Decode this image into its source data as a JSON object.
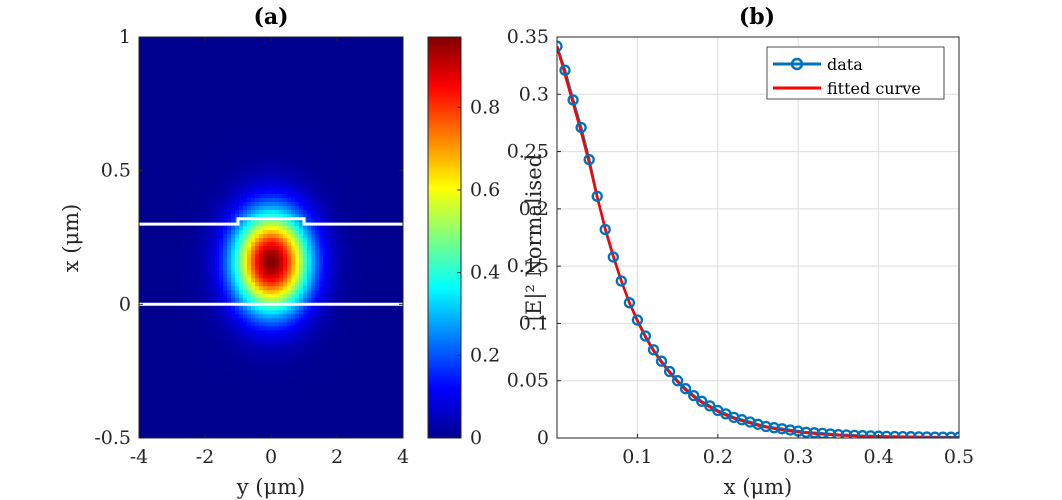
{
  "chart_data": [
    {
      "panel_title": "(a)",
      "type": "heatmap",
      "xlabel": "y (μm)",
      "ylabel": "x (μm)",
      "xlim": [
        -4,
        4
      ],
      "ylim": [
        -0.5,
        1
      ],
      "xticks": [
        -4,
        -2,
        0,
        2,
        4
      ],
      "xtick_labels": [
        "-4",
        "-2",
        "0",
        "2",
        "4"
      ],
      "yticks": [
        -0.5,
        0,
        0.5,
        1
      ],
      "ytick_labels": [
        "-0.5",
        "0",
        "0.5",
        "1"
      ],
      "field_peak": {
        "y": 0,
        "x": 0.16,
        "value": 0.97
      },
      "field_width": {
        "sigma_y": 0.8,
        "sigma_x": 0.13
      },
      "colormap": "jet",
      "colorbar": {
        "range": [
          0,
          0.97
        ],
        "ticks": [
          0,
          0.2,
          0.4,
          0.6,
          0.8
        ],
        "tick_labels": [
          "0",
          "0.2",
          "0.4",
          "0.6",
          "0.8"
        ]
      },
      "waveguide_outline": [
        {
          "name": "bottom-boundary",
          "points": [
            [
              -4,
              0
            ],
            [
              4,
              0
            ]
          ]
        },
        {
          "name": "top-boundary",
          "points": [
            [
              -4,
              0.3
            ],
            [
              -1,
              0.3
            ],
            [
              -1,
              0.32
            ],
            [
              1,
              0.32
            ],
            [
              1,
              0.3
            ],
            [
              4,
              0.3
            ]
          ]
        }
      ],
      "outline_color": "#ffffff"
    },
    {
      "panel_title": "(b)",
      "type": "line",
      "xlabel": "x (μm)",
      "ylabel": "|E|² Normalised",
      "xlim": [
        0,
        0.5
      ],
      "ylim": [
        0,
        0.35
      ],
      "xticks": [
        0.1,
        0.2,
        0.3,
        0.4,
        0.5
      ],
      "xtick_labels": [
        "0.1",
        "0.2",
        "0.3",
        "0.4",
        "0.5"
      ],
      "yticks": [
        0,
        0.05,
        0.1,
        0.15,
        0.2,
        0.25,
        0.3,
        0.35
      ],
      "ytick_labels": [
        "0",
        "0.05",
        "0.1",
        "0.15",
        "0.2",
        "0.25",
        "0.3",
        "0.35"
      ],
      "grid": true,
      "legend_position": "top-right",
      "series": [
        {
          "name": "data",
          "style": "line-with-circle-markers",
          "color": "#0072bd",
          "x": [
            0.0,
            0.01,
            0.02,
            0.03,
            0.04,
            0.05,
            0.06,
            0.07,
            0.08,
            0.09,
            0.1,
            0.11,
            0.12,
            0.13,
            0.14,
            0.15,
            0.16,
            0.17,
            0.18,
            0.19,
            0.2,
            0.21,
            0.22,
            0.23,
            0.24,
            0.25,
            0.26,
            0.27,
            0.28,
            0.29,
            0.3,
            0.31,
            0.32,
            0.33,
            0.34,
            0.35,
            0.36,
            0.37,
            0.38,
            0.39,
            0.4,
            0.41,
            0.42,
            0.43,
            0.44,
            0.45,
            0.46,
            0.47,
            0.48,
            0.49,
            0.5
          ],
          "y": [
            0.342,
            0.321,
            0.295,
            0.271,
            0.243,
            0.211,
            0.182,
            0.158,
            0.137,
            0.118,
            0.103,
            0.089,
            0.077,
            0.067,
            0.058,
            0.05,
            0.043,
            0.037,
            0.032,
            0.028,
            0.024,
            0.021,
            0.018,
            0.016,
            0.014,
            0.012,
            0.01,
            0.009,
            0.008,
            0.007,
            0.006,
            0.005,
            0.0045,
            0.004,
            0.0035,
            0.003,
            0.0026,
            0.0023,
            0.002,
            0.0018,
            0.0016,
            0.0014,
            0.0013,
            0.0012,
            0.0011,
            0.001,
            0.0009,
            0.0008,
            0.0008,
            0.0007,
            0.0007
          ]
        },
        {
          "name": "fitted curve",
          "style": "line",
          "color": "#ff0000",
          "x": [
            0.0,
            0.01,
            0.02,
            0.03,
            0.04,
            0.05,
            0.06,
            0.07,
            0.08,
            0.09,
            0.1,
            0.11,
            0.12,
            0.13,
            0.14,
            0.15,
            0.16,
            0.17,
            0.18,
            0.19,
            0.2,
            0.21,
            0.22,
            0.23,
            0.24,
            0.25,
            0.26,
            0.27,
            0.28,
            0.29,
            0.3,
            0.31,
            0.32,
            0.33,
            0.34,
            0.35,
            0.36,
            0.37,
            0.38,
            0.39,
            0.4,
            0.41,
            0.42,
            0.43,
            0.44,
            0.45,
            0.46,
            0.47,
            0.48,
            0.49,
            0.5
          ],
          "y": [
            0.342,
            0.317,
            0.292,
            0.267,
            0.24,
            0.21,
            0.183,
            0.159,
            0.137,
            0.118,
            0.102,
            0.088,
            0.076,
            0.066,
            0.057,
            0.049,
            0.042,
            0.036,
            0.031,
            0.027,
            0.023,
            0.02,
            0.017,
            0.015,
            0.013,
            0.011,
            0.0095,
            0.0082,
            0.007,
            0.006,
            0.0052,
            0.0045,
            0.0038,
            0.0033,
            0.0028,
            0.0024,
            0.0021,
            0.0018,
            0.0015,
            0.0013,
            0.0011,
            0.001,
            0.0008,
            0.0007,
            0.0006,
            0.0005,
            0.0004,
            0.0004,
            0.0003,
            0.0003,
            0.0002
          ]
        }
      ]
    }
  ]
}
